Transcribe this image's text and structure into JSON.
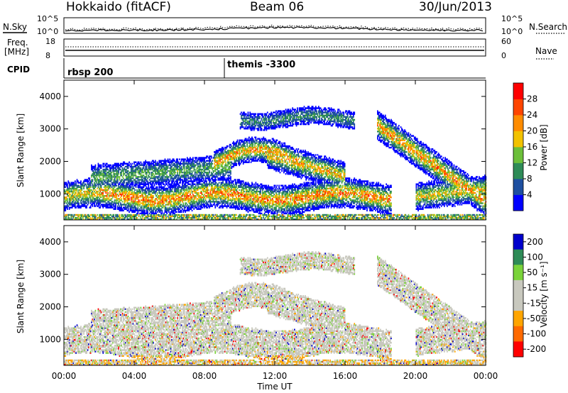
{
  "header": {
    "title": "Hokkaido (fitACF)",
    "beam": "Beam 06",
    "date": "30/Jun/2013"
  },
  "noise": {
    "left_label": "N.Sky",
    "right_label": "N.Search",
    "left_ticks": [
      "10^5",
      "10^0"
    ],
    "right_ticks": [
      "10^5",
      "10^0"
    ]
  },
  "freq": {
    "label_line1": "Freq.",
    "label_line2": "[MHz]",
    "ticks_left": [
      "18",
      "8"
    ],
    "nave_label": "Nave",
    "ticks_right": [
      "60",
      "0"
    ]
  },
  "cpid": {
    "label": "CPID",
    "segments": [
      {
        "name": "rbsp 200",
        "start_hour": 0
      },
      {
        "name": "themis -3300",
        "start_hour": 9
      }
    ]
  },
  "colors": {
    "power": [
      "#0000ff",
      "#1e4fa0",
      "#2e8b57",
      "#6cbf3a",
      "#f2c200",
      "#ff8c00",
      "#ff4500",
      "#ff0000"
    ],
    "velocity": [
      "#ff0000",
      "#ff6a00",
      "#ffa500",
      "#c8c8be",
      "#c8c8be",
      "#7ad33a",
      "#2e8b57",
      "#0000cc"
    ],
    "ground_scatter": "#c8c8be"
  },
  "chart_data": [
    {
      "type": "heatmap",
      "name": "power",
      "ylabel": "Slant Range [km]",
      "xlim": [
        0,
        24
      ],
      "ylim": [
        200,
        4500
      ],
      "y_ticks": [
        "1000",
        "2000",
        "3000",
        "4000"
      ],
      "colorbar_label": "Power [dB]",
      "colorbar_ticks": [
        "4",
        "8",
        "12",
        "16",
        "20",
        "24",
        "28"
      ],
      "colorbar_range": [
        0,
        32
      ]
    },
    {
      "type": "heatmap",
      "name": "velocity",
      "ylabel": "Slant Range [km]",
      "xlabel": "Time UT",
      "xlim": [
        0,
        24
      ],
      "ylim": [
        200,
        4500
      ],
      "x_ticks": [
        "00:00",
        "04:00",
        "08:00",
        "12:00",
        "16:00",
        "20:00",
        "00:00"
      ],
      "y_ticks": [
        "1000",
        "2000",
        "3000",
        "4000"
      ],
      "colorbar_label": "Velocity [m s⁻¹]",
      "colorbar_ticks": [
        "200",
        "100",
        "50",
        "15",
        "-15",
        "-50",
        "-100",
        "-200"
      ]
    }
  ]
}
